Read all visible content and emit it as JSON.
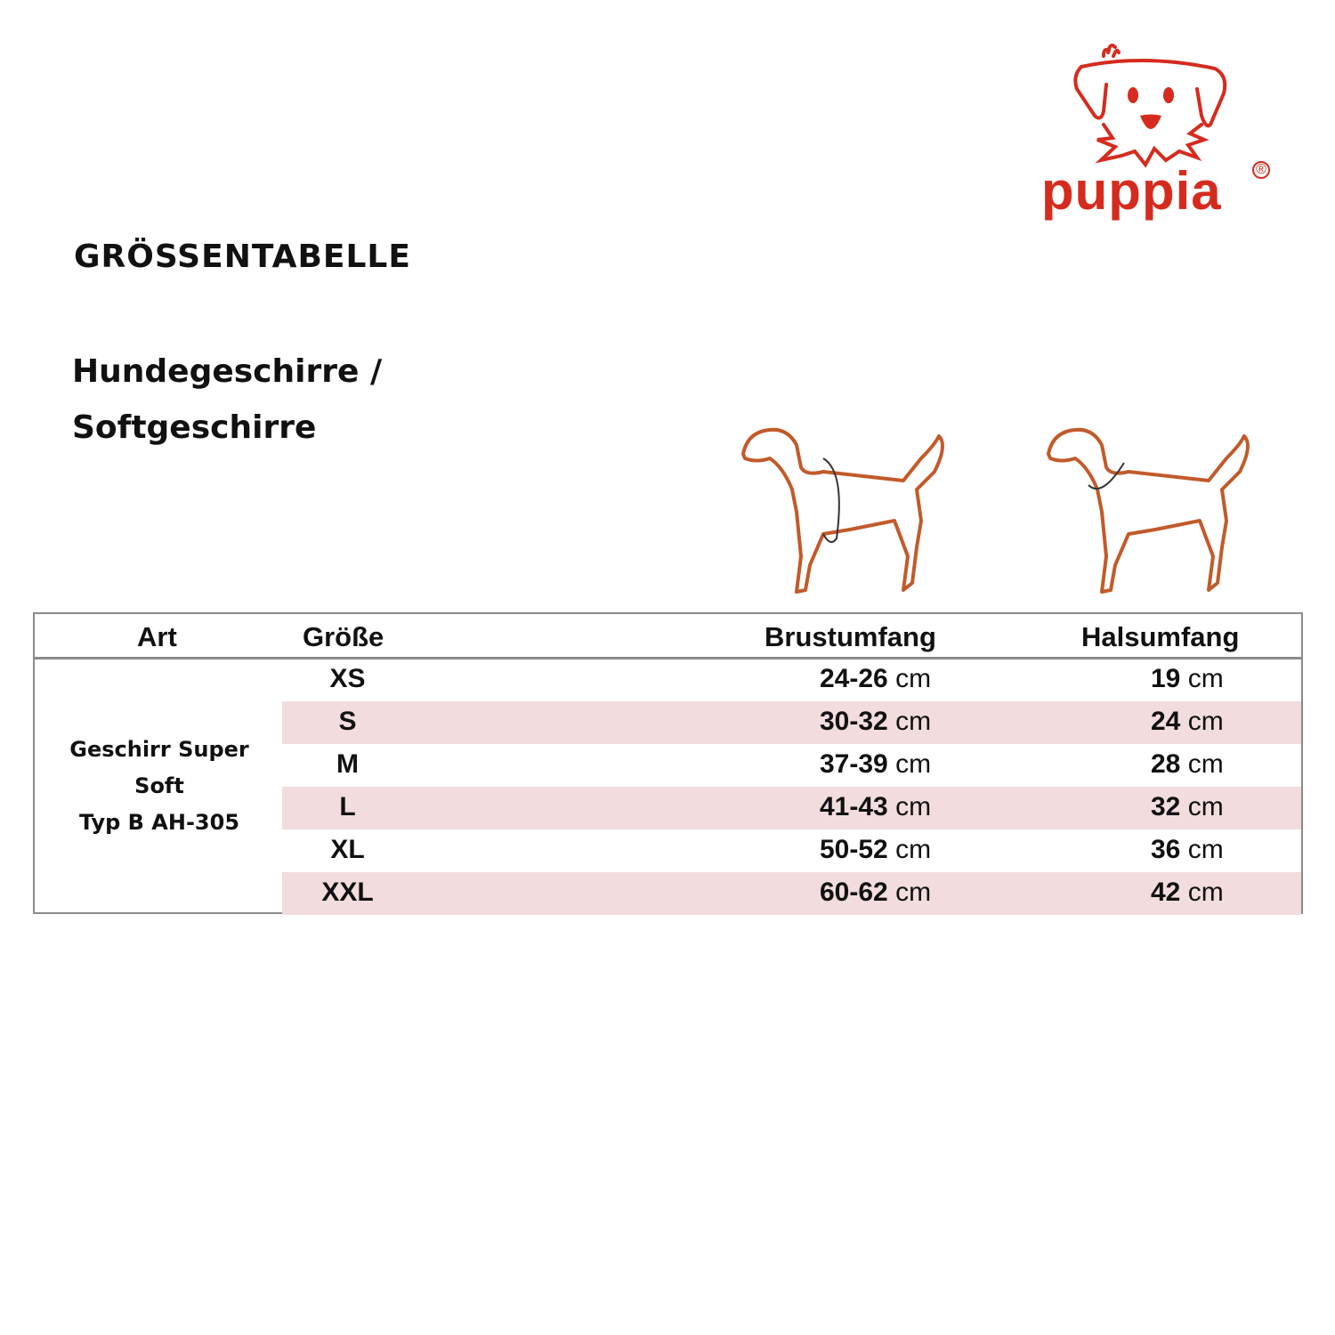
{
  "brand": {
    "name": "puppia",
    "registered": "®",
    "color": "#d52b1e"
  },
  "heading": "GRÖSSENTABELLE",
  "subheading": [
    "Hundegeschirre /",
    "Softgeschirre"
  ],
  "illustrations": [
    {
      "icon": "dog-chest-measure-icon"
    },
    {
      "icon": "dog-neck-measure-icon"
    }
  ],
  "table": {
    "headers": [
      "Art",
      "Größe",
      "Brustumfang",
      "Halsumfang"
    ],
    "art": [
      "Geschirr Super",
      "Soft",
      "Typ B AH-305"
    ],
    "unit": "cm",
    "row_highlight": "#f2dcdd",
    "rows": [
      {
        "size": "XS",
        "chest": "24-26",
        "neck": "19"
      },
      {
        "size": "S",
        "chest": "30-32",
        "neck": "24"
      },
      {
        "size": "M",
        "chest": "37-39",
        "neck": "28"
      },
      {
        "size": "L",
        "chest": "41-43",
        "neck": "32"
      },
      {
        "size": "XL",
        "chest": "50-52",
        "neck": "36"
      },
      {
        "size": "XXL",
        "chest": "60-62",
        "neck": "42"
      }
    ]
  }
}
